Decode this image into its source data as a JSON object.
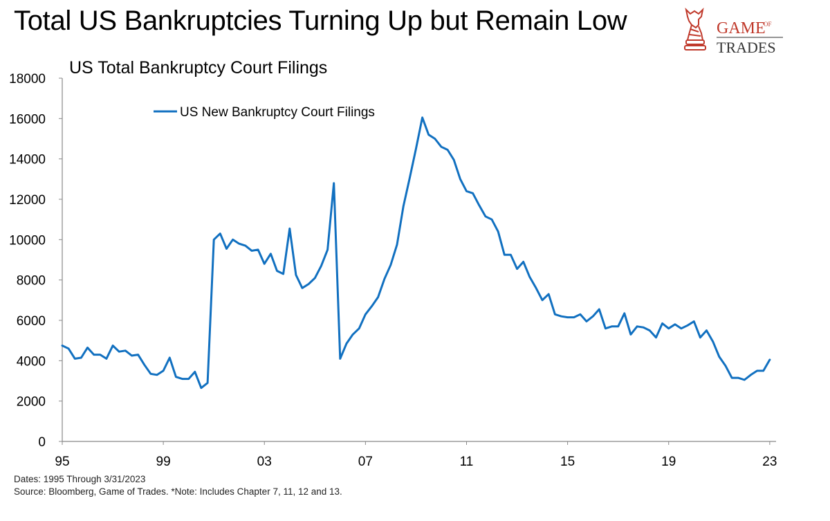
{
  "header": {
    "title": "Total US Bankruptcies Turning Up but Remain Low",
    "brand_top": "GAME",
    "brand_of": "OF",
    "brand_bottom": "TRADES",
    "brand_color": "#C0392B"
  },
  "notes": {
    "dates": "Dates: 1995 Through 3/31/2023",
    "source": "Source: Bloomberg, Game of Trades. *Note: Includes Chapter 7, 11, 12 and 13."
  },
  "chart_data": {
    "type": "line",
    "title": "US Total Bankruptcy Court Filings",
    "xlabel": "",
    "ylabel": "",
    "xlim": [
      1995.0,
      2023.25
    ],
    "ylim": [
      0,
      18000
    ],
    "yticks": [
      0,
      2000,
      4000,
      6000,
      8000,
      10000,
      12000,
      14000,
      16000,
      18000
    ],
    "xticks": [
      {
        "value": 1995,
        "label": "95"
      },
      {
        "value": 1999,
        "label": "99"
      },
      {
        "value": 2003,
        "label": "03"
      },
      {
        "value": 2007,
        "label": "07"
      },
      {
        "value": 2011,
        "label": "11"
      },
      {
        "value": 2015,
        "label": "15"
      },
      {
        "value": 2019,
        "label": "19"
      },
      {
        "value": 2023,
        "label": "23"
      }
    ],
    "grid": false,
    "legend_position": "top-left",
    "line_color": "#1170C0",
    "series": [
      {
        "name": "US New Bankruptcy Court Filings",
        "x": [
          1995.0,
          1995.25,
          1995.5,
          1995.75,
          1996.0,
          1996.25,
          1996.5,
          1996.75,
          1997.0,
          1997.25,
          1997.5,
          1997.75,
          1998.0,
          1998.25,
          1998.5,
          1998.75,
          1999.0,
          1999.25,
          1999.5,
          1999.75,
          2000.0,
          2000.25,
          2000.5,
          2000.75,
          2001.0,
          2001.25,
          2001.5,
          2001.75,
          2002.0,
          2002.25,
          2002.5,
          2002.75,
          2003.0,
          2003.25,
          2003.5,
          2003.75,
          2004.0,
          2004.25,
          2004.5,
          2004.75,
          2005.0,
          2005.25,
          2005.5,
          2005.75,
          2006.0,
          2006.25,
          2006.5,
          2006.75,
          2007.0,
          2007.25,
          2007.5,
          2007.75,
          2008.0,
          2008.25,
          2008.5,
          2008.75,
          2009.0,
          2009.25,
          2009.5,
          2009.75,
          2010.0,
          2010.25,
          2010.5,
          2010.75,
          2011.0,
          2011.25,
          2011.5,
          2011.75,
          2012.0,
          2012.25,
          2012.5,
          2012.75,
          2013.0,
          2013.25,
          2013.5,
          2013.75,
          2014.0,
          2014.25,
          2014.5,
          2014.75,
          2015.0,
          2015.25,
          2015.5,
          2015.75,
          2016.0,
          2016.25,
          2016.5,
          2016.75,
          2017.0,
          2017.25,
          2017.5,
          2017.75,
          2018.0,
          2018.25,
          2018.5,
          2018.75,
          2019.0,
          2019.25,
          2019.5,
          2019.75,
          2020.0,
          2020.25,
          2020.5,
          2020.75,
          2021.0,
          2021.25,
          2021.5,
          2021.75,
          2022.0,
          2022.25,
          2022.5,
          2022.75,
          2023.0
        ],
        "values": [
          4750,
          4600,
          4100,
          4150,
          4650,
          4300,
          4300,
          4100,
          4750,
          4450,
          4500,
          4250,
          4300,
          3800,
          3350,
          3300,
          3500,
          4150,
          3200,
          3100,
          3100,
          3450,
          2650,
          2900,
          10000,
          10300,
          9550,
          10000,
          9800,
          9700,
          9450,
          9500,
          8800,
          9300,
          8450,
          8300,
          10550,
          8250,
          7600,
          7800,
          8100,
          8700,
          9500,
          12800,
          4100,
          4850,
          5300,
          5600,
          6300,
          6700,
          7150,
          8050,
          8750,
          9750,
          11650,
          13050,
          14500,
          16050,
          15200,
          15000,
          14600,
          14450,
          13950,
          13000,
          12400,
          12300,
          11700,
          11150,
          11000,
          10400,
          9250,
          9250,
          8550,
          8900,
          8150,
          7600,
          7000,
          7300,
          6300,
          6200,
          6150,
          6150,
          6300,
          5950,
          6200,
          6550,
          5600,
          5700,
          5700,
          6350,
          5300,
          5700,
          5650,
          5500,
          5150,
          5850,
          5600,
          5800,
          5600,
          5750,
          5950,
          5150,
          5500,
          4950,
          4200,
          3750,
          3150,
          3150,
          3050,
          3300,
          3500,
          3500,
          4050
        ]
      }
    ]
  }
}
